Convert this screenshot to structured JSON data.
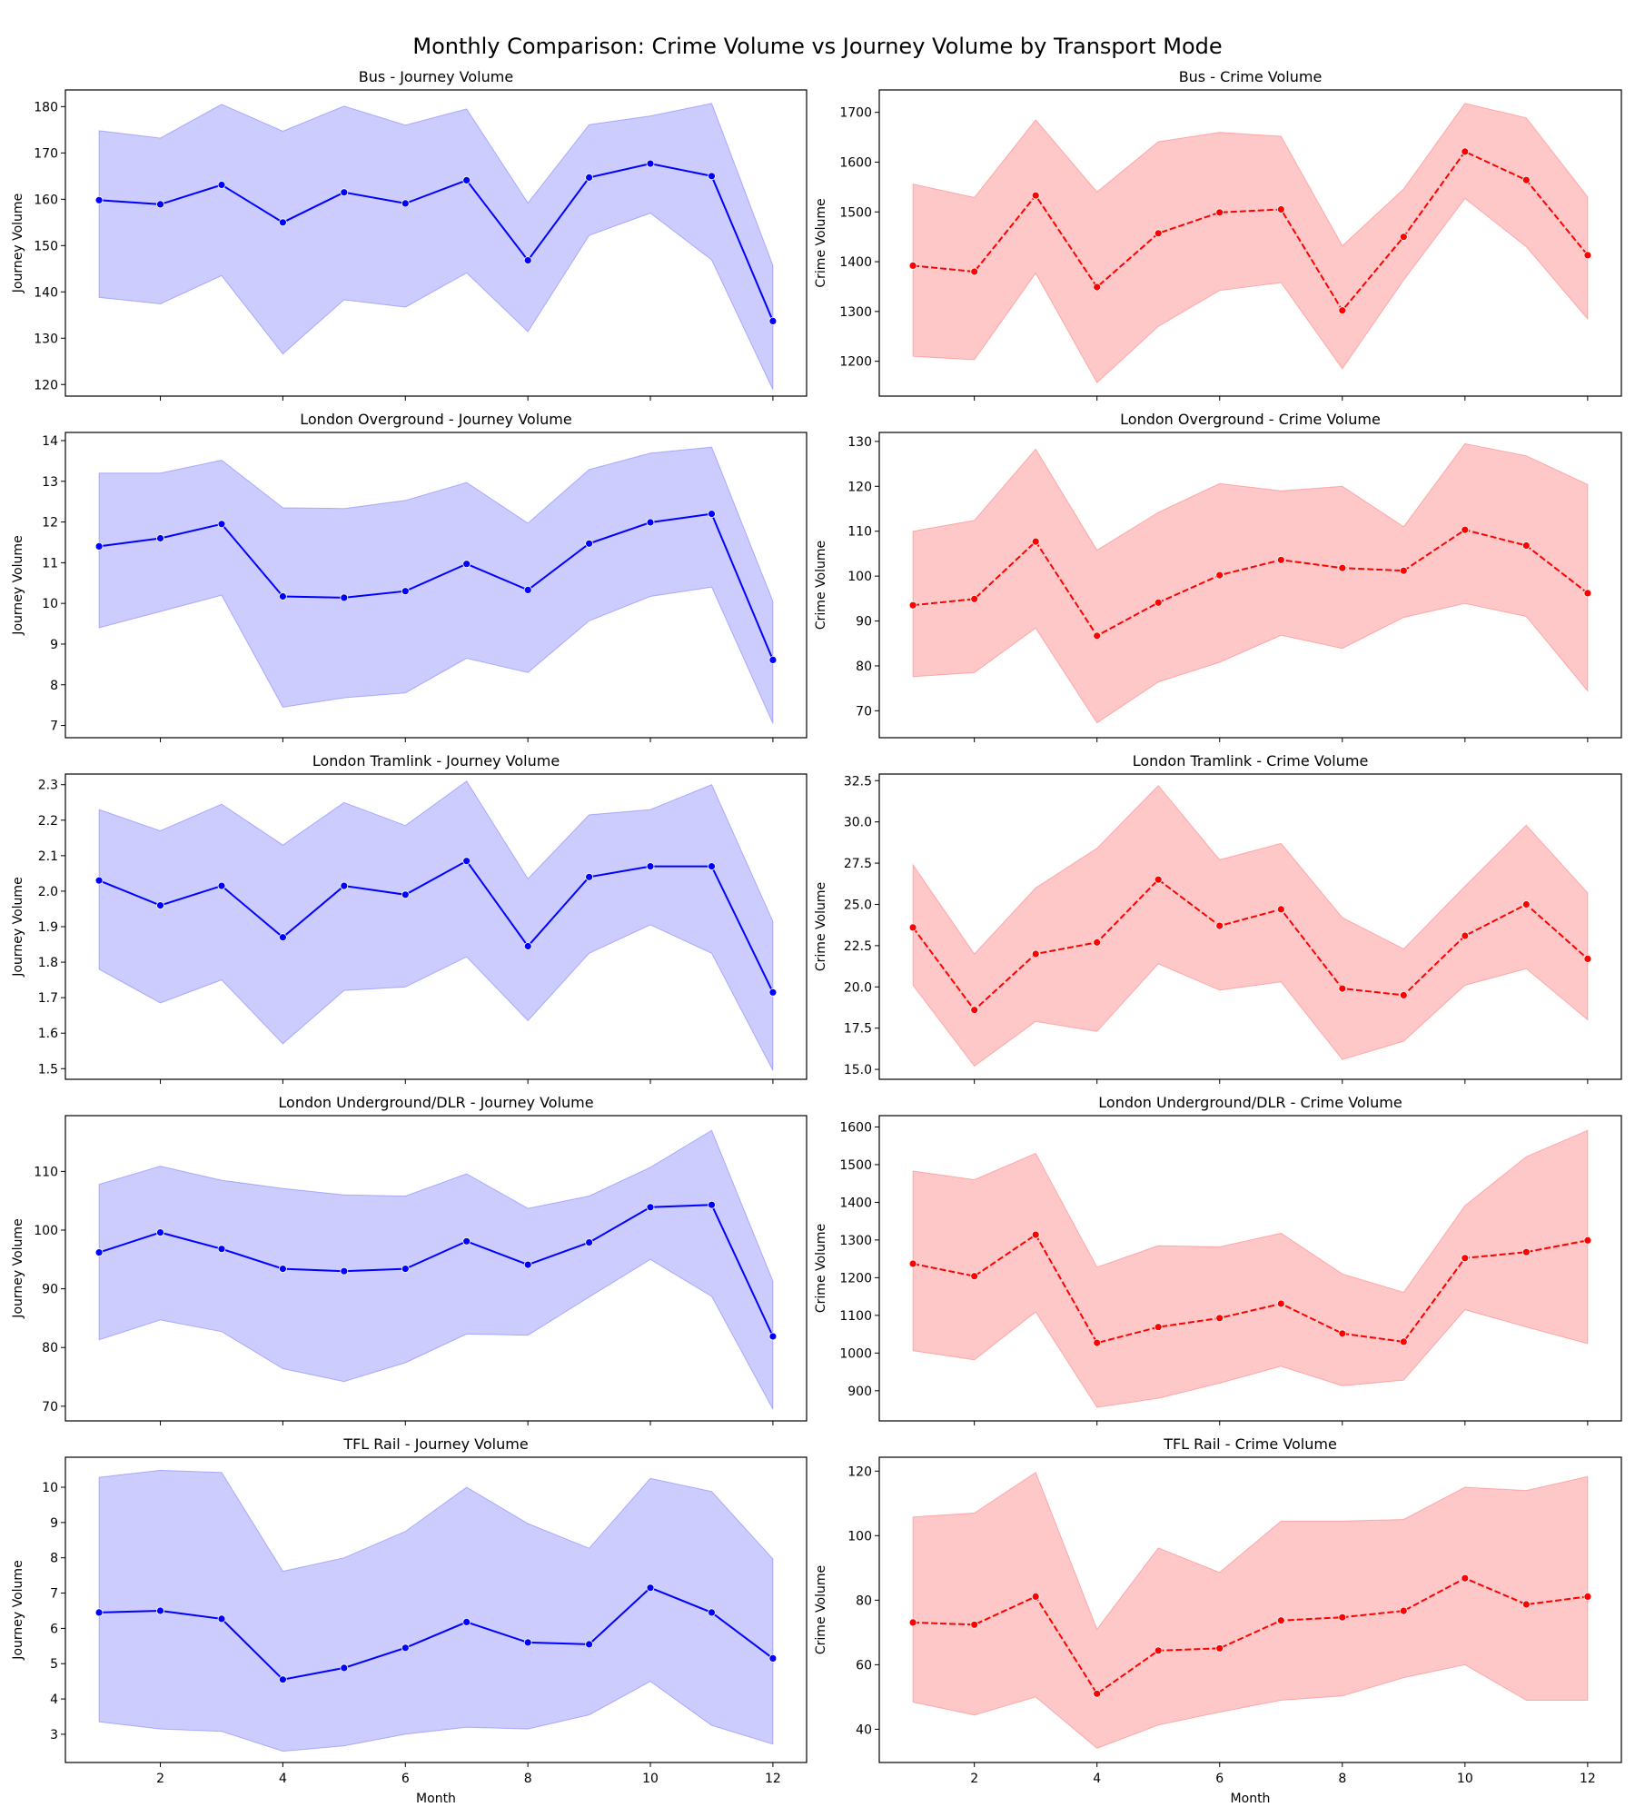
{
  "figure": {
    "title": "Monthly Comparison: Crime Volume vs Journey Volume by Transport Mode",
    "xlabel": "Month",
    "colors": {
      "journey_line": "#0000ff",
      "journey_band": "#ccccff",
      "crime_line": "#ff0000",
      "crime_band": "#ffc8c8"
    }
  },
  "chart_data": [
    {
      "type": "line",
      "kind": "journey",
      "title": "Bus - Journey Volume",
      "ylabel": "Journey Volume",
      "xlabel": "Month",
      "ylim": [
        117.5,
        183.6
      ],
      "yticks": [
        120,
        130,
        140,
        150,
        160,
        170,
        180
      ],
      "ytick_labels": [
        "120",
        "130",
        "140",
        "150",
        "160",
        "170",
        "180"
      ],
      "x": [
        1,
        2,
        3,
        4,
        5,
        6,
        7,
        8,
        9,
        10,
        11,
        12
      ],
      "mean": [
        159.8,
        158.9,
        163.1,
        155.0,
        161.5,
        159.1,
        164.1,
        146.8,
        164.7,
        167.7,
        165.0,
        133.7
      ],
      "lower": [
        138.8,
        137.4,
        143.5,
        126.6,
        138.3,
        136.7,
        144.1,
        131.4,
        152.2,
        157.0,
        146.9,
        118.9
      ],
      "upper": [
        174.8,
        173.2,
        180.5,
        174.7,
        180.1,
        176.0,
        179.5,
        159.2,
        176.1,
        178.0,
        180.7,
        145.7
      ]
    },
    {
      "type": "line",
      "kind": "crime",
      "title": "Bus - Crime Volume",
      "ylabel": "Crime Volume",
      "xlabel": "Month",
      "ylim": [
        1130,
        1745
      ],
      "yticks": [
        1200,
        1300,
        1400,
        1500,
        1600,
        1700
      ],
      "ytick_labels": [
        "1200",
        "1300",
        "1400",
        "1500",
        "1600",
        "1700"
      ],
      "x": [
        1,
        2,
        3,
        4,
        5,
        6,
        7,
        8,
        9,
        10,
        11,
        12
      ],
      "mean": [
        1392,
        1380,
        1533,
        1349,
        1457,
        1499,
        1505,
        1302,
        1450,
        1621,
        1564,
        1413
      ],
      "lower": [
        1210,
        1203,
        1377,
        1157,
        1270,
        1342,
        1358,
        1185,
        1363,
        1527,
        1430,
        1285
      ],
      "upper": [
        1556,
        1529,
        1685,
        1540,
        1641,
        1660,
        1652,
        1432,
        1546,
        1718,
        1689,
        1530
      ]
    },
    {
      "type": "line",
      "kind": "journey",
      "title": "London Overground - Journey Volume",
      "ylabel": "Journey Volume",
      "xlabel": "Month",
      "ylim": [
        6.7,
        14.2
      ],
      "yticks": [
        7,
        8,
        9,
        10,
        11,
        12,
        13,
        14
      ],
      "ytick_labels": [
        "7",
        "8",
        "9",
        "10",
        "11",
        "12",
        "13",
        "14"
      ],
      "x": [
        1,
        2,
        3,
        4,
        5,
        6,
        7,
        8,
        9,
        10,
        11,
        12
      ],
      "mean": [
        11.4,
        11.6,
        11.95,
        10.17,
        10.14,
        10.3,
        10.97,
        10.33,
        11.47,
        11.99,
        12.2,
        8.61
      ],
      "lower": [
        9.4,
        9.8,
        10.2,
        7.45,
        7.68,
        7.8,
        8.65,
        8.3,
        9.57,
        10.17,
        10.4,
        7.05
      ],
      "upper": [
        13.2,
        13.2,
        13.52,
        12.35,
        12.33,
        12.53,
        12.97,
        11.97,
        13.29,
        13.69,
        13.84,
        10.05
      ]
    },
    {
      "type": "line",
      "kind": "crime",
      "title": "London Overground - Crime Volume",
      "ylabel": "Crime Volume",
      "xlabel": "Month",
      "ylim": [
        64,
        132
      ],
      "yticks": [
        70,
        80,
        90,
        100,
        110,
        120,
        130
      ],
      "ytick_labels": [
        "70",
        "80",
        "90",
        "100",
        "110",
        "120",
        "130"
      ],
      "x": [
        1,
        2,
        3,
        4,
        5,
        6,
        7,
        8,
        9,
        10,
        11,
        12
      ],
      "mean": [
        93.5,
        94.9,
        107.7,
        86.7,
        94.1,
        100.2,
        103.6,
        101.8,
        101.2,
        110.3,
        106.8,
        96.2
      ],
      "lower": [
        77.6,
        78.5,
        88.4,
        67.3,
        76.4,
        80.8,
        86.8,
        83.9,
        90.8,
        93.9,
        91.0,
        74.4
      ],
      "upper": [
        110.0,
        112.4,
        128.3,
        105.8,
        114.2,
        120.6,
        119.0,
        120.0,
        111.0,
        129.5,
        126.8,
        120.4
      ]
    },
    {
      "type": "line",
      "kind": "journey",
      "title": "London Tramlink - Journey Volume",
      "ylabel": "Journey Volume",
      "xlabel": "Month",
      "ylim": [
        1.47,
        2.33
      ],
      "yticks": [
        1.5,
        1.6,
        1.7,
        1.8,
        1.9,
        2.0,
        2.1,
        2.2,
        2.3
      ],
      "ytick_labels": [
        "1.5",
        "1.6",
        "1.7",
        "1.8",
        "1.9",
        "2.0",
        "2.1",
        "2.2",
        "2.3"
      ],
      "x": [
        1,
        2,
        3,
        4,
        5,
        6,
        7,
        8,
        9,
        10,
        11,
        12
      ],
      "mean": [
        2.03,
        1.96,
        2.015,
        1.87,
        2.015,
        1.99,
        2.085,
        1.845,
        2.04,
        2.07,
        2.07,
        1.715
      ],
      "lower": [
        1.78,
        1.685,
        1.75,
        1.57,
        1.72,
        1.73,
        1.815,
        1.635,
        1.825,
        1.905,
        1.825,
        1.495
      ],
      "upper": [
        2.23,
        2.17,
        2.245,
        2.13,
        2.25,
        2.185,
        2.31,
        2.035,
        2.215,
        2.23,
        2.3,
        1.915
      ]
    },
    {
      "type": "line",
      "kind": "crime",
      "title": "London Tramlink - Crime Volume",
      "ylabel": "Crime Volume",
      "xlabel": "Month",
      "ylim": [
        14.4,
        32.9
      ],
      "yticks": [
        15.0,
        17.5,
        20.0,
        22.5,
        25.0,
        27.5,
        30.0,
        32.5
      ],
      "ytick_labels": [
        "15.0",
        "17.5",
        "20.0",
        "22.5",
        "25.0",
        "27.5",
        "30.0",
        "32.5"
      ],
      "x": [
        1,
        2,
        3,
        4,
        5,
        6,
        7,
        8,
        9,
        10,
        11,
        12
      ],
      "mean": [
        23.6,
        18.6,
        22.0,
        22.7,
        26.5,
        23.7,
        24.7,
        19.9,
        19.5,
        23.1,
        25.0,
        21.7
      ],
      "lower": [
        20.1,
        15.2,
        17.9,
        17.3,
        21.4,
        19.8,
        20.3,
        15.6,
        16.7,
        20.1,
        21.1,
        18.0
      ],
      "upper": [
        27.4,
        22.0,
        26.0,
        28.4,
        32.2,
        27.7,
        28.7,
        24.2,
        22.3,
        26.1,
        29.8,
        25.7
      ]
    },
    {
      "type": "line",
      "kind": "journey",
      "title": "London Underground/DLR - Journey Volume",
      "ylabel": "Journey Volume",
      "xlabel": "Month",
      "ylim": [
        67.5,
        119.5
      ],
      "yticks": [
        70,
        80,
        90,
        100,
        110
      ],
      "ytick_labels": [
        "70",
        "80",
        "90",
        "100",
        "110"
      ],
      "x": [
        1,
        2,
        3,
        4,
        5,
        6,
        7,
        8,
        9,
        10,
        11,
        12
      ],
      "mean": [
        96.2,
        99.6,
        96.8,
        93.4,
        93.0,
        93.4,
        98.1,
        94.1,
        97.9,
        103.9,
        104.3,
        81.9
      ],
      "lower": [
        81.3,
        84.7,
        82.7,
        76.4,
        74.2,
        77.4,
        82.3,
        82.1,
        88.6,
        95.0,
        88.7,
        69.5
      ],
      "upper": [
        107.8,
        110.9,
        108.5,
        107.1,
        106.0,
        105.8,
        109.6,
        103.7,
        105.8,
        110.7,
        117.0,
        91.3
      ]
    },
    {
      "type": "line",
      "kind": "crime",
      "title": "London Underground/DLR - Crime Volume",
      "ylabel": "Crime Volume",
      "xlabel": "Month",
      "ylim": [
        820,
        1630
      ],
      "yticks": [
        900,
        1000,
        1100,
        1200,
        1300,
        1400,
        1500,
        1600
      ],
      "ytick_labels": [
        "900",
        "1000",
        "1100",
        "1200",
        "1300",
        "1400",
        "1500",
        "1600"
      ],
      "x": [
        1,
        2,
        3,
        4,
        5,
        6,
        7,
        8,
        9,
        10,
        11,
        12
      ],
      "mean": [
        1237,
        1204,
        1314,
        1027,
        1069,
        1093,
        1131,
        1052,
        1030,
        1252,
        1268,
        1299
      ],
      "lower": [
        1006,
        982,
        1109,
        856,
        880,
        920,
        965,
        913,
        928,
        1115,
        1069,
        1025
      ],
      "upper": [
        1483,
        1460,
        1530,
        1228,
        1285,
        1282,
        1318,
        1210,
        1161,
        1391,
        1521,
        1591
      ]
    },
    {
      "type": "line",
      "kind": "journey",
      "title": "TFL Rail - Journey Volume",
      "ylabel": "Journey Volume",
      "xlabel": "Month",
      "ylim": [
        2.2,
        10.85
      ],
      "yticks": [
        3,
        4,
        5,
        6,
        7,
        8,
        9,
        10
      ],
      "ytick_labels": [
        "3",
        "4",
        "5",
        "6",
        "7",
        "8",
        "9",
        "10"
      ],
      "x": [
        1,
        2,
        3,
        4,
        5,
        6,
        7,
        8,
        9,
        10,
        11,
        12
      ],
      "mean": [
        6.45,
        6.5,
        6.27,
        4.55,
        4.88,
        5.45,
        6.18,
        5.6,
        5.55,
        7.15,
        6.45,
        5.15
      ],
      "lower": [
        3.35,
        3.15,
        3.08,
        2.52,
        2.67,
        3.0,
        3.2,
        3.15,
        3.55,
        4.5,
        3.25,
        2.72
      ],
      "upper": [
        10.28,
        10.48,
        10.42,
        7.62,
        8.0,
        8.75,
        10.0,
        8.97,
        8.27,
        10.25,
        9.88,
        7.97
      ]
    },
    {
      "type": "line",
      "kind": "crime",
      "title": "TFL Rail - Crime Volume",
      "ylabel": "Crime Volume",
      "xlabel": "Month",
      "ylim": [
        29.7,
        124.3
      ],
      "yticks": [
        40,
        60,
        80,
        100,
        120
      ],
      "ytick_labels": [
        "40",
        "60",
        "80",
        "100",
        "120"
      ],
      "x": [
        1,
        2,
        3,
        4,
        5,
        6,
        7,
        8,
        9,
        10,
        11,
        12
      ],
      "mean": [
        73.1,
        72.4,
        81.1,
        51.0,
        64.4,
        65.1,
        73.7,
        74.7,
        76.7,
        86.8,
        78.7,
        81.1
      ],
      "lower": [
        48.4,
        44.4,
        50.0,
        34.1,
        41.3,
        45.3,
        49.0,
        50.3,
        56.0,
        60.0,
        49.0,
        49.0
      ],
      "upper": [
        105.8,
        107.0,
        119.6,
        71.0,
        96.2,
        88.6,
        104.5,
        104.5,
        105.0,
        115.0,
        114.0,
        118.3
      ]
    }
  ]
}
